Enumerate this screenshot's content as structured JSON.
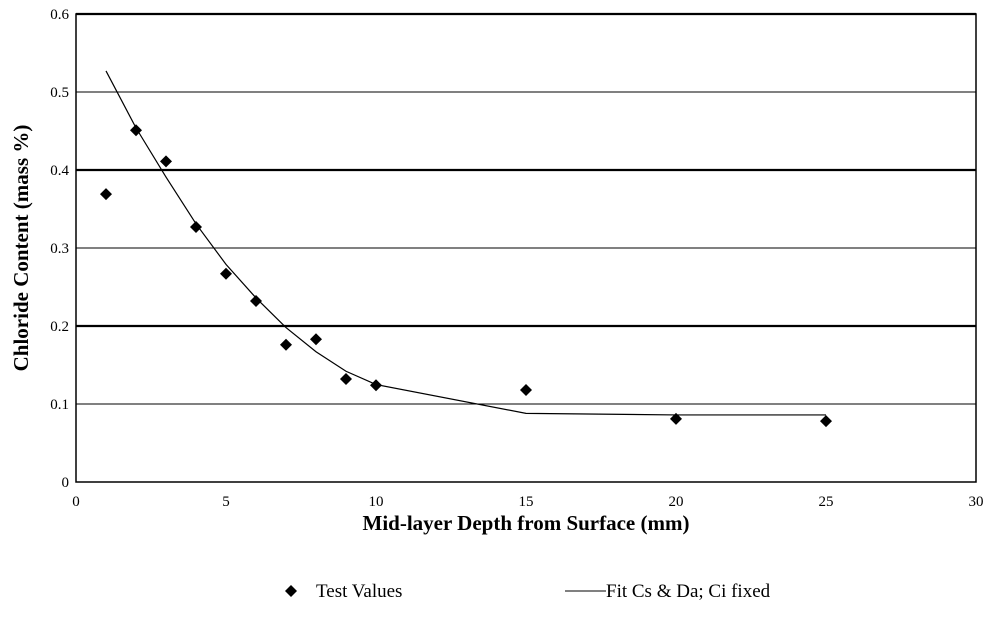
{
  "chart_data": {
    "type": "scatter",
    "title": "",
    "xlabel": "Mid-layer Depth from Surface (mm)",
    "ylabel": "Chloride Content (mass %)",
    "xlim": [
      0,
      30
    ],
    "ylim": [
      0,
      0.6
    ],
    "x_ticks": [
      "0",
      "5",
      "10",
      "15",
      "20",
      "25",
      "30"
    ],
    "y_ticks": [
      "0",
      "0.1",
      "0.2",
      "0.3",
      "0.4",
      "0.5",
      "0.6"
    ],
    "grid": "horizontal",
    "legend_position": "bottom",
    "series": [
      {
        "name": "Test Values",
        "kind": "markers",
        "marker": "diamond",
        "color": "#000000",
        "x": [
          1,
          2,
          3,
          4,
          5,
          6,
          7,
          8,
          9,
          10,
          15,
          20,
          25
        ],
        "y": [
          0.369,
          0.451,
          0.411,
          0.327,
          0.267,
          0.232,
          0.176,
          0.183,
          0.132,
          0.124,
          0.118,
          0.081,
          0.078
        ]
      },
      {
        "name": "Fit Cs & Da; Ci fixed",
        "kind": "line",
        "color": "#000000",
        "x": [
          1,
          2,
          3,
          4,
          5,
          6,
          7,
          8,
          9,
          10,
          15,
          20,
          25
        ],
        "y": [
          0.527,
          0.454,
          0.391,
          0.331,
          0.279,
          0.236,
          0.198,
          0.167,
          0.142,
          0.125,
          0.088,
          0.086,
          0.086
        ]
      }
    ]
  }
}
